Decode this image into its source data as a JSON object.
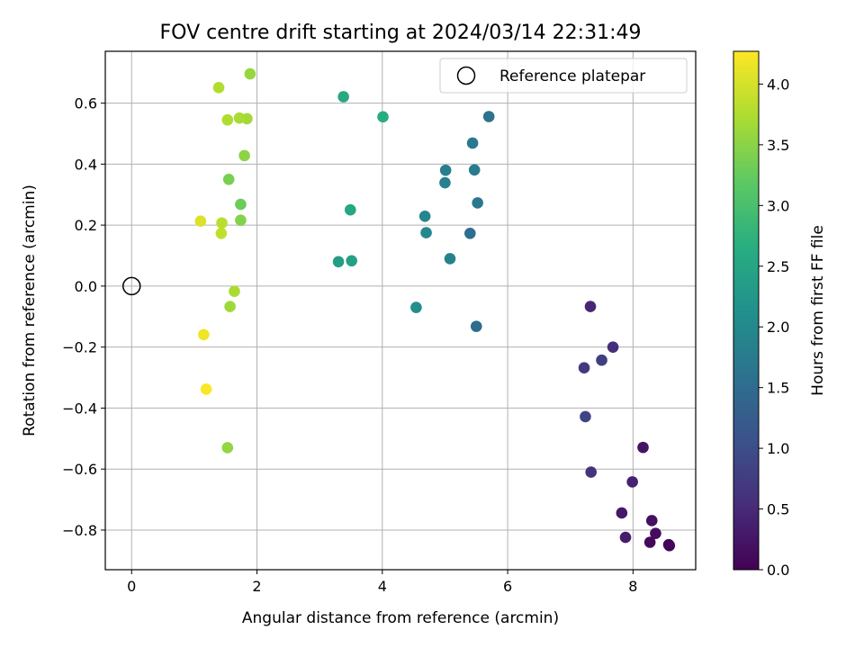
{
  "chart_data": {
    "type": "scatter",
    "title": "FOV centre drift starting at 2024/03/14 22:31:49",
    "xlabel": "Angular distance from reference (arcmin)",
    "ylabel": "Rotation from reference (arcmin)",
    "xlim": [
      -0.42,
      9.0
    ],
    "ylim": [
      -0.93,
      0.77
    ],
    "xticks": [
      0,
      2,
      4,
      6,
      8
    ],
    "xtick_labels": [
      "0",
      "2",
      "4",
      "6",
      "8"
    ],
    "yticks": [
      -0.8,
      -0.6,
      -0.4,
      -0.2,
      0.0,
      0.2,
      0.4,
      0.6
    ],
    "ytick_labels": [
      "−0.8",
      "−0.6",
      "−0.4",
      "−0.2",
      "0.0",
      "0.2",
      "0.4",
      "0.6"
    ],
    "grid": true,
    "legend": {
      "position": "top-right",
      "entries": [
        "Reference platepar"
      ]
    },
    "colorbar": {
      "label": "Hours from first FF file",
      "colormap": "viridis",
      "range": [
        0.0,
        4.27
      ],
      "ticks": [
        0.0,
        0.5,
        1.0,
        1.5,
        2.0,
        2.5,
        3.0,
        3.5,
        4.0
      ],
      "tick_labels": [
        "0.0",
        "0.5",
        "1.0",
        "1.5",
        "2.0",
        "2.5",
        "3.0",
        "3.5",
        "4.0"
      ]
    },
    "reference_point": {
      "name": "Reference platepar",
      "x": 0.0,
      "y": 0.0
    },
    "points": [
      {
        "x": 8.58,
        "y": -0.851,
        "hours": 0.03
      },
      {
        "x": 8.57,
        "y": -0.848,
        "hours": 0.06
      },
      {
        "x": 8.27,
        "y": -0.84,
        "hours": 0.1
      },
      {
        "x": 8.36,
        "y": -0.811,
        "hours": 0.14
      },
      {
        "x": 8.3,
        "y": -0.769,
        "hours": 0.18
      },
      {
        "x": 8.16,
        "y": -0.529,
        "hours": 0.22
      },
      {
        "x": 7.82,
        "y": -0.744,
        "hours": 0.28
      },
      {
        "x": 7.88,
        "y": -0.824,
        "hours": 0.33
      },
      {
        "x": 7.99,
        "y": -0.642,
        "hours": 0.4
      },
      {
        "x": 7.32,
        "y": -0.067,
        "hours": 0.45
      },
      {
        "x": 7.68,
        "y": -0.2,
        "hours": 0.55
      },
      {
        "x": 7.33,
        "y": -0.61,
        "hours": 0.62
      },
      {
        "x": 7.22,
        "y": -0.268,
        "hours": 0.7
      },
      {
        "x": 7.5,
        "y": -0.243,
        "hours": 0.78
      },
      {
        "x": 7.24,
        "y": -0.428,
        "hours": 0.85
      },
      {
        "x": 5.5,
        "y": -0.132,
        "hours": 1.5
      },
      {
        "x": 5.4,
        "y": 0.173,
        "hours": 1.55
      },
      {
        "x": 5.7,
        "y": 0.556,
        "hours": 1.62
      },
      {
        "x": 5.52,
        "y": 0.273,
        "hours": 1.68
      },
      {
        "x": 5.44,
        "y": 0.469,
        "hours": 1.72
      },
      {
        "x": 5.47,
        "y": 0.381,
        "hours": 1.76
      },
      {
        "x": 5.01,
        "y": 0.38,
        "hours": 1.8
      },
      {
        "x": 5.0,
        "y": 0.339,
        "hours": 1.84
      },
      {
        "x": 5.08,
        "y": 0.09,
        "hours": 1.88
      },
      {
        "x": 4.68,
        "y": 0.229,
        "hours": 1.95
      },
      {
        "x": 4.7,
        "y": 0.175,
        "hours": 2.0
      },
      {
        "x": 4.54,
        "y": -0.07,
        "hours": 2.1
      },
      {
        "x": 3.3,
        "y": 0.08,
        "hours": 2.35
      },
      {
        "x": 3.51,
        "y": 0.083,
        "hours": 2.42
      },
      {
        "x": 3.49,
        "y": 0.25,
        "hours": 2.52
      },
      {
        "x": 3.38,
        "y": 0.621,
        "hours": 2.58
      },
      {
        "x": 4.01,
        "y": 0.555,
        "hours": 2.65
      },
      {
        "x": 1.74,
        "y": 0.268,
        "hours": 3.3
      },
      {
        "x": 1.55,
        "y": 0.35,
        "hours": 3.38
      },
      {
        "x": 1.74,
        "y": 0.216,
        "hours": 3.45
      },
      {
        "x": 1.8,
        "y": 0.428,
        "hours": 3.52
      },
      {
        "x": 1.53,
        "y": -0.53,
        "hours": 3.56
      },
      {
        "x": 1.89,
        "y": 0.696,
        "hours": 3.58
      },
      {
        "x": 1.57,
        "y": -0.067,
        "hours": 3.64
      },
      {
        "x": 1.84,
        "y": 0.549,
        "hours": 3.66
      },
      {
        "x": 1.72,
        "y": 0.551,
        "hours": 3.7
      },
      {
        "x": 1.64,
        "y": -0.017,
        "hours": 3.72
      },
      {
        "x": 1.53,
        "y": 0.545,
        "hours": 3.74
      },
      {
        "x": 1.39,
        "y": 0.651,
        "hours": 3.76
      },
      {
        "x": 1.44,
        "y": 0.207,
        "hours": 3.82
      },
      {
        "x": 1.43,
        "y": 0.173,
        "hours": 3.86
      },
      {
        "x": 1.1,
        "y": 0.213,
        "hours": 4.05
      },
      {
        "x": 1.15,
        "y": -0.159,
        "hours": 4.18
      },
      {
        "x": 1.19,
        "y": -0.338,
        "hours": 4.25
      }
    ]
  }
}
